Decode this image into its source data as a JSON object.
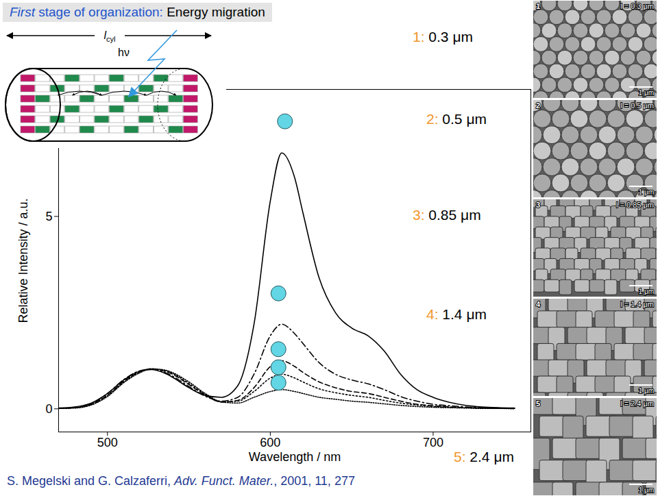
{
  "chart_data": {
    "type": "line",
    "x_label": "Wavelength / nm",
    "y_label": "Relative Intensity / a.u.",
    "x": [
      470,
      480,
      490,
      500,
      510,
      520,
      527,
      535,
      540,
      550,
      560,
      570,
      580,
      590,
      600,
      607,
      615,
      620,
      630,
      640,
      650,
      660,
      670,
      680,
      690,
      700,
      710,
      720,
      730,
      740,
      750
    ],
    "xlim": [
      470,
      760
    ],
    "xticks": [
      500,
      600,
      700
    ],
    "ylim": [
      -0.6,
      8.3
    ],
    "yticks": [
      0,
      5
    ],
    "grid": false,
    "legend": "right",
    "series": [
      {
        "name": "1: 0.3 μm",
        "color": "#000000",
        "line_style": "solid",
        "values": [
          0.02,
          0.05,
          0.15,
          0.4,
          0.75,
          0.98,
          1.02,
          0.93,
          0.82,
          0.55,
          0.35,
          0.3,
          0.6,
          2.2,
          5.4,
          6.65,
          6.0,
          5.1,
          3.4,
          2.5,
          2.1,
          1.9,
          1.5,
          0.9,
          0.5,
          0.3,
          0.17,
          0.09,
          0.05,
          0.03,
          0.02
        ]
      },
      {
        "name": "2: 0.5 μm",
        "color": "#000000",
        "line_style": "dashdot",
        "values": [
          0.01,
          0.04,
          0.14,
          0.4,
          0.76,
          0.99,
          1.03,
          0.95,
          0.85,
          0.58,
          0.33,
          0.2,
          0.3,
          0.9,
          1.9,
          2.2,
          1.95,
          1.7,
          1.2,
          0.9,
          0.75,
          0.65,
          0.5,
          0.32,
          0.2,
          0.12,
          0.08,
          0.05,
          0.03,
          0.02,
          0.01
        ]
      },
      {
        "name": "3: 0.85 μm",
        "color": "#000000",
        "line_style": "dashed",
        "values": [
          0.01,
          0.03,
          0.12,
          0.36,
          0.72,
          0.97,
          1.04,
          0.98,
          0.9,
          0.63,
          0.36,
          0.18,
          0.22,
          0.55,
          1.1,
          1.25,
          1.1,
          0.95,
          0.7,
          0.55,
          0.45,
          0.4,
          0.3,
          0.2,
          0.12,
          0.08,
          0.05,
          0.03,
          0.02,
          0.01,
          0.01
        ]
      },
      {
        "name": "4: 1.4 μm",
        "color": "#000000",
        "line_style": "dotted",
        "values": [
          0.01,
          0.03,
          0.11,
          0.34,
          0.7,
          0.95,
          1.03,
          1.0,
          0.92,
          0.66,
          0.38,
          0.18,
          0.2,
          0.45,
          0.8,
          0.9,
          0.8,
          0.7,
          0.52,
          0.42,
          0.35,
          0.3,
          0.22,
          0.15,
          0.1,
          0.06,
          0.04,
          0.03,
          0.02,
          0.01,
          0.01
        ]
      },
      {
        "name": "5: 2.4 μm",
        "color": "#000000",
        "line_style": "densely dotted",
        "values": [
          0.01,
          0.02,
          0.1,
          0.32,
          0.68,
          0.94,
          1.04,
          1.01,
          0.94,
          0.7,
          0.4,
          0.18,
          0.15,
          0.3,
          0.45,
          0.5,
          0.45,
          0.4,
          0.3,
          0.25,
          0.2,
          0.17,
          0.13,
          0.09,
          0.06,
          0.04,
          0.03,
          0.02,
          0.01,
          0.01,
          0.0
        ]
      }
    ],
    "peak_markers": {
      "x": [
        609,
        605,
        605,
        605,
        605
      ],
      "y": [
        7.47,
        3.0,
        1.55,
        1.08,
        0.68
      ],
      "color": "#62d6e4",
      "marker": "circle"
    }
  },
  "slide": {
    "title": {
      "emphasis": "First",
      "rest": "stage of organization:",
      "topic": "Energy migration"
    },
    "inset": {
      "length_symbol": "l",
      "length_subscript": "cyl",
      "photon": "hν"
    },
    "sem_images": [
      {
        "index": "1",
        "length_label": "l = 0.3 μm",
        "scale_bar": "1 μm"
      },
      {
        "index": "2",
        "length_label": "l = 0.5 μm",
        "scale_bar": "1 μm"
      },
      {
        "index": "3",
        "length_label": "l = 0.85 μm",
        "scale_bar": "1 μm"
      },
      {
        "index": "4",
        "length_label": "l = 1.4 μm",
        "scale_bar": "1 μm"
      },
      {
        "index": "5",
        "length_label": "l = 2.4 μm",
        "scale_bar": "1 μm"
      }
    ],
    "citation": {
      "authors": "S. Megelski and G. Calzaferri, ",
      "journal": "Adv. Funct. Mater.",
      "details": ", 2001, 11, 277"
    }
  }
}
